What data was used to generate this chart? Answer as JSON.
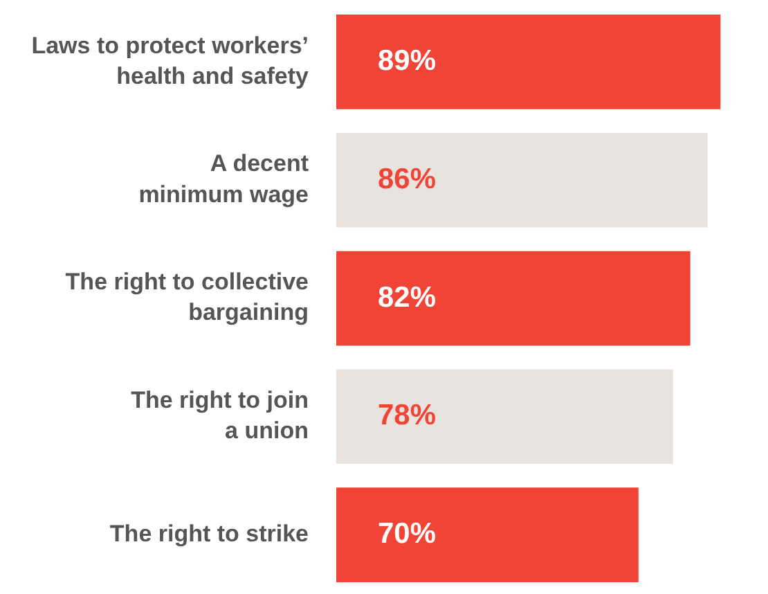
{
  "chart_data": {
    "type": "bar",
    "orientation": "horizontal",
    "categories": [
      "Laws to protect workers’\nhealth and safety",
      "A decent\nminimum wage",
      "The right to collective\nbargaining",
      "The right to join\na union",
      "The right to strike"
    ],
    "values": [
      89,
      86,
      82,
      78,
      70
    ],
    "value_labels": [
      "89%",
      "86%",
      "82%",
      "78%",
      "70%"
    ],
    "colors": [
      "#f04536",
      "#e8e3df",
      "#f04536",
      "#e8e3df",
      "#f04536"
    ],
    "tick_labels": "y"
  }
}
